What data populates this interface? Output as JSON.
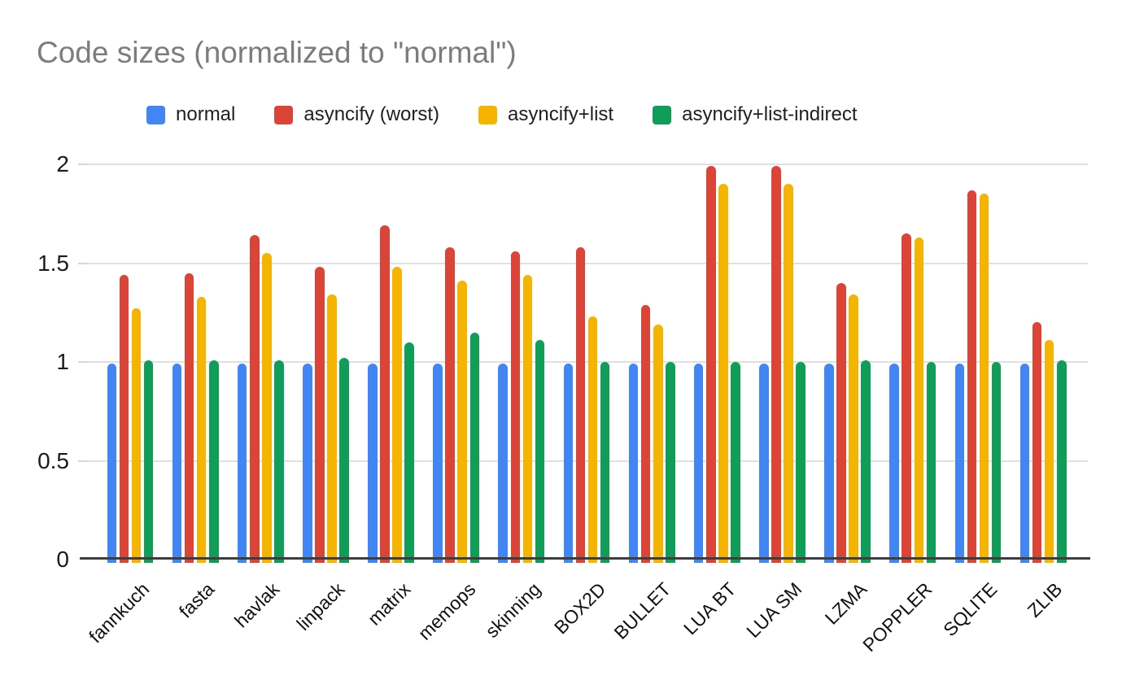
{
  "chart_data": {
    "type": "bar",
    "title": "Code sizes (normalized to \"normal\")",
    "xlabel": "",
    "ylabel": "",
    "ylim": [
      0,
      2
    ],
    "yticks": [
      0,
      0.5,
      1,
      1.5,
      2
    ],
    "ytick_labels": [
      "0",
      "0.5",
      "1",
      "1.5",
      "2"
    ],
    "grid": true,
    "legend_position": "top",
    "categories": [
      "fannkuch",
      "fasta",
      "havlak",
      "linpack",
      "matrix",
      "memops",
      "skinning",
      "BOX2D",
      "BULLET",
      "LUA BT",
      "LUA SM",
      "LZMA",
      "POPPLER",
      "SQLITE",
      "ZLIB"
    ],
    "series": [
      {
        "name": "normal",
        "color": "#4285F4",
        "values": [
          0.99,
          0.99,
          0.99,
          0.99,
          0.99,
          0.99,
          0.99,
          0.99,
          0.99,
          0.99,
          0.99,
          0.99,
          0.99,
          0.99,
          0.99
        ]
      },
      {
        "name": "asyncify (worst)",
        "color": "#DB4437",
        "values": [
          1.44,
          1.45,
          1.64,
          1.48,
          1.69,
          1.58,
          1.56,
          1.58,
          1.29,
          1.99,
          1.99,
          1.4,
          1.65,
          1.87,
          1.2
        ]
      },
      {
        "name": "asyncify+list",
        "color": "#F4B400",
        "values": [
          1.27,
          1.33,
          1.55,
          1.34,
          1.48,
          1.41,
          1.44,
          1.23,
          1.19,
          1.9,
          1.9,
          1.34,
          1.63,
          1.85,
          1.11
        ]
      },
      {
        "name": "asyncify+list-indirect",
        "color": "#0F9D58",
        "values": [
          1.01,
          1.01,
          1.01,
          1.02,
          1.1,
          1.15,
          1.11,
          1.0,
          1.0,
          1.0,
          1.0,
          1.01,
          1.0,
          1.0,
          1.01
        ]
      }
    ],
    "colors": {
      "title_text": "#7c7c7c",
      "axis_line": "#3e3e3e",
      "gridline": "#e0e0e0",
      "label_text": "#111111"
    }
  }
}
